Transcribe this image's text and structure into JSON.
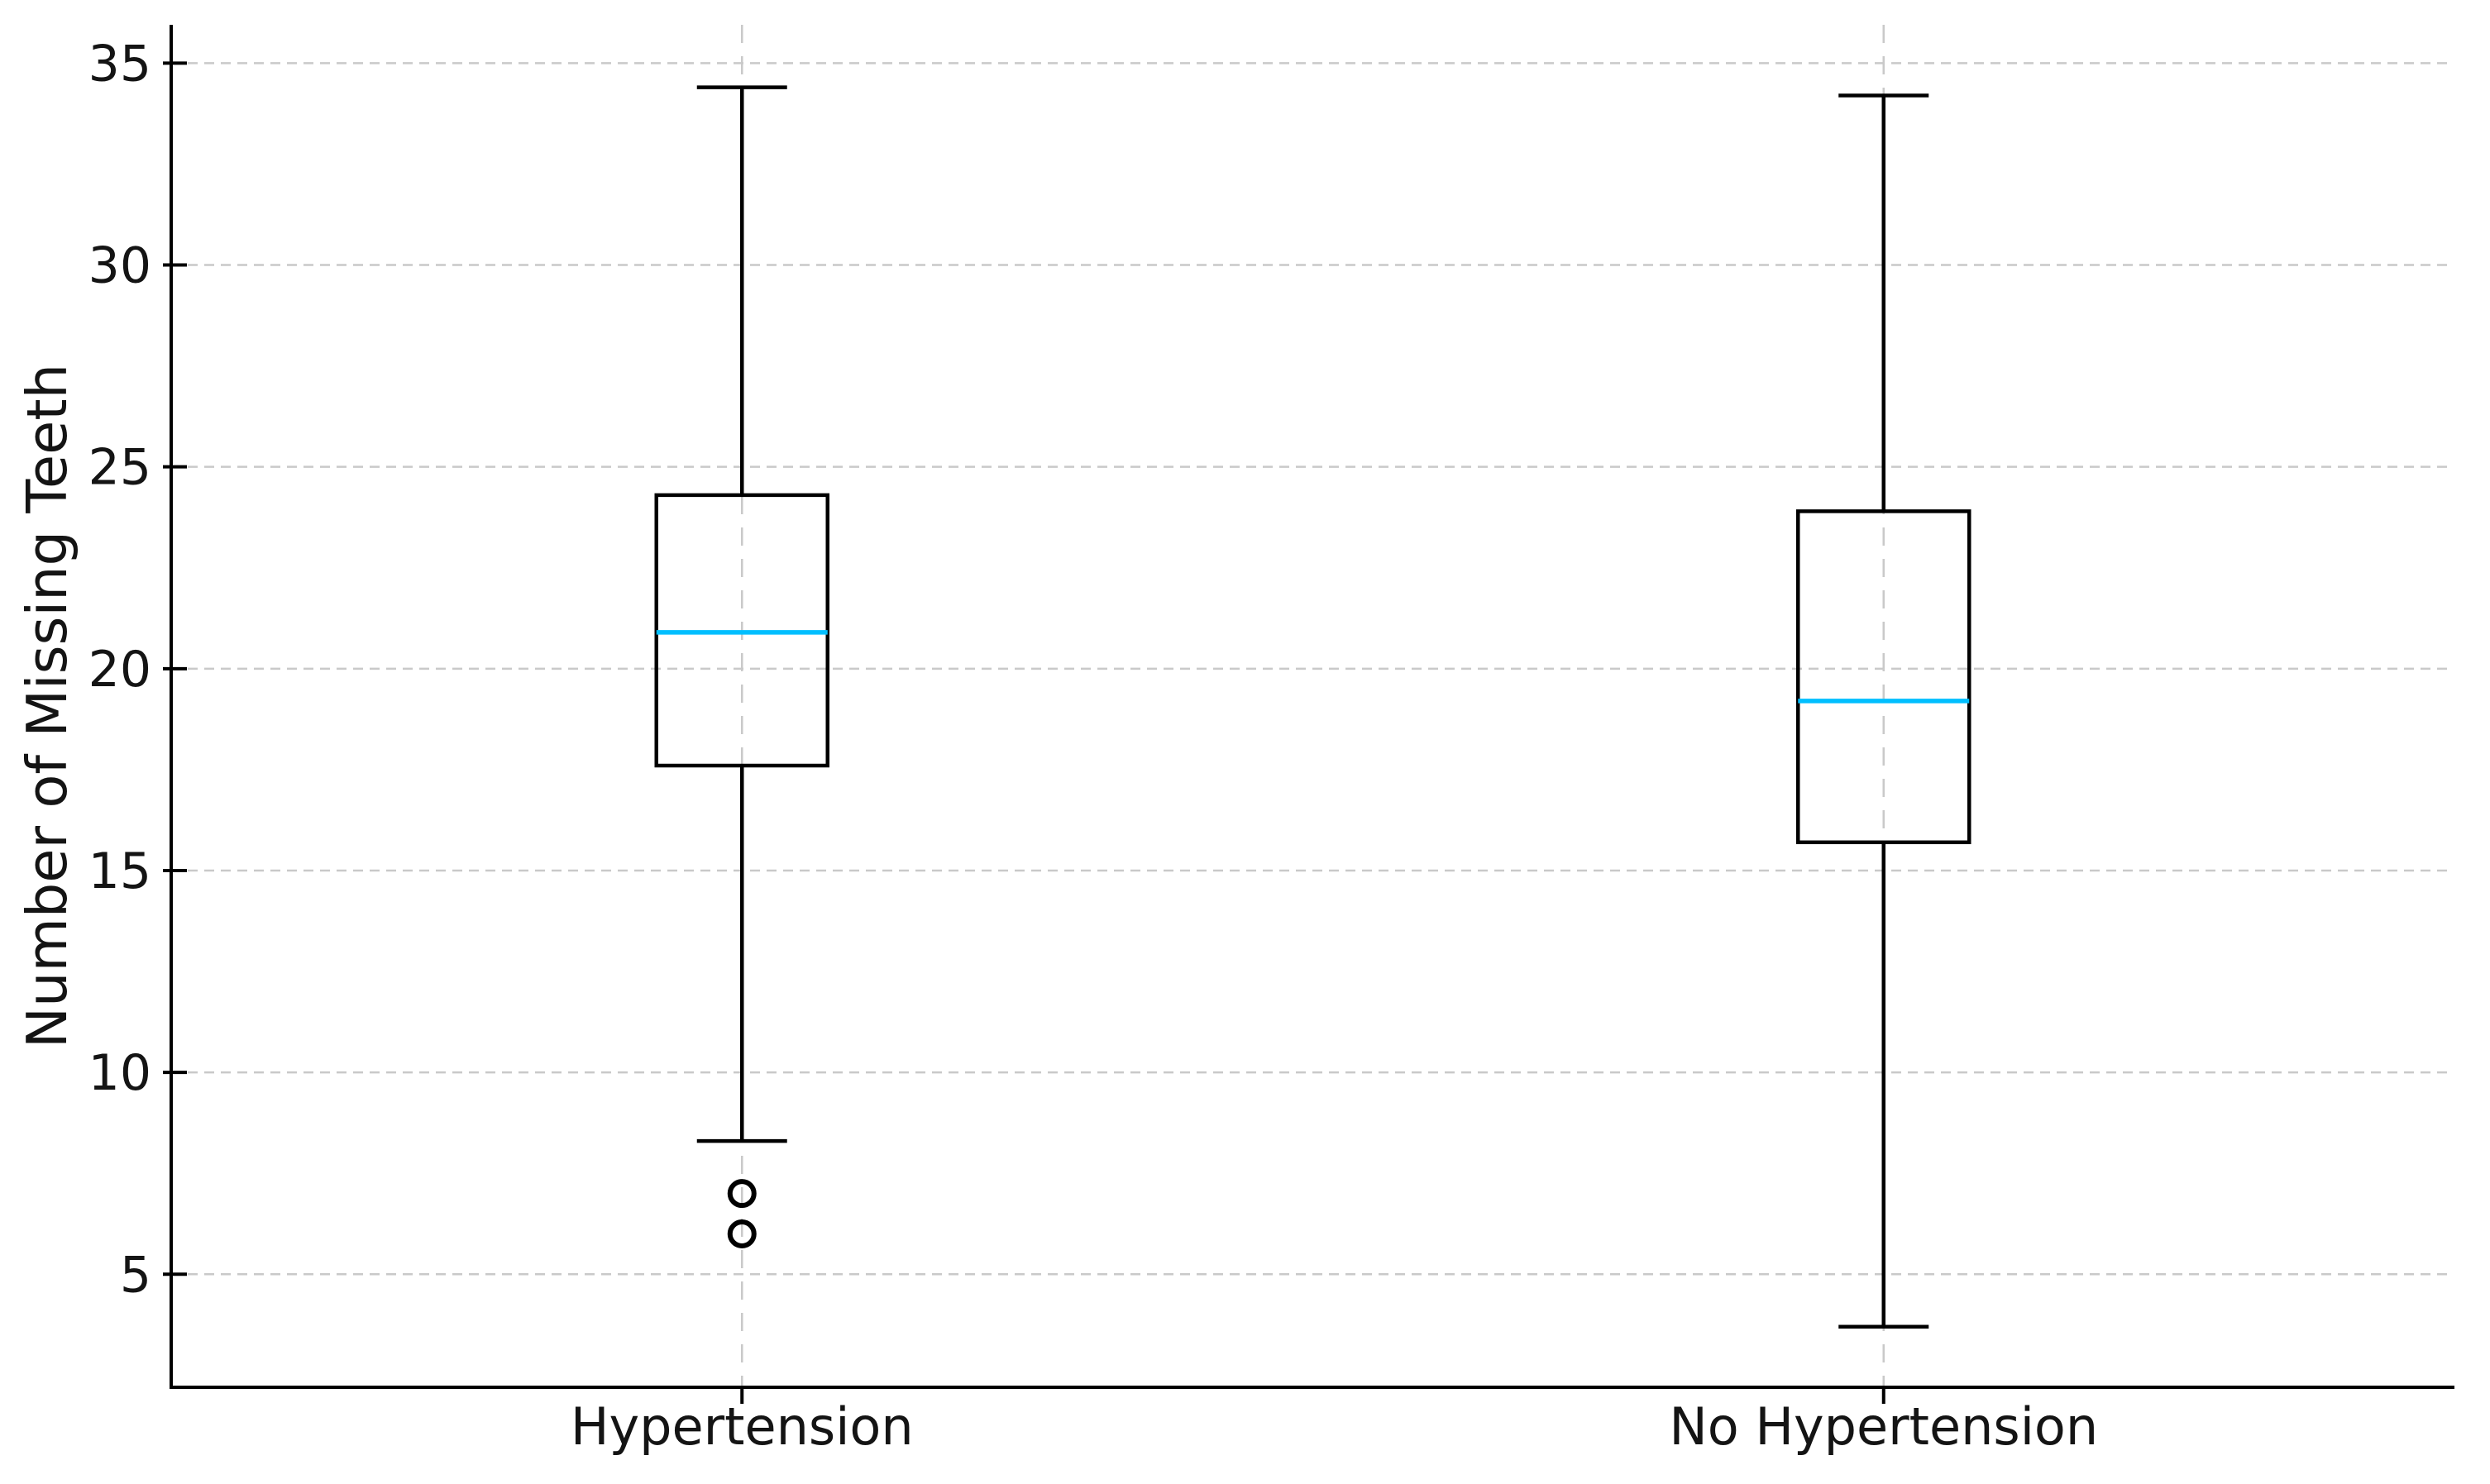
{
  "page": {
    "background": "#ffffff"
  },
  "chart_data": {
    "type": "box",
    "ylabel": "Number of Missing Teeth",
    "categories": [
      "Hypertension",
      "No Hypertension"
    ],
    "yticks": [
      5,
      10,
      15,
      20,
      25,
      30,
      35
    ],
    "ylim": [
      2.2,
      35.95
    ],
    "xlim": [
      0.5,
      2.5
    ],
    "grid": {
      "visible": true,
      "axis": "both",
      "linestyle": "dashed",
      "color": "#c9c9c9"
    },
    "legend": null,
    "colors": {
      "box_edge": "#000000",
      "whisker": "#000000",
      "median": "#00BFFF",
      "outlier_edge": "#000000",
      "spine": "#000000",
      "text": "#141414"
    },
    "series": [
      {
        "category": "Hypertension",
        "position": 1,
        "whisker_low": 8.3,
        "q1": 17.6,
        "median": 20.9,
        "q3": 24.3,
        "whisker_high": 34.4,
        "outliers": [
          7,
          6
        ]
      },
      {
        "category": "No Hypertension",
        "position": 2,
        "whisker_low": 3.7,
        "q1": 15.7,
        "median": 19.2,
        "q3": 23.9,
        "whisker_high": 34.2,
        "outliers": []
      }
    ]
  }
}
